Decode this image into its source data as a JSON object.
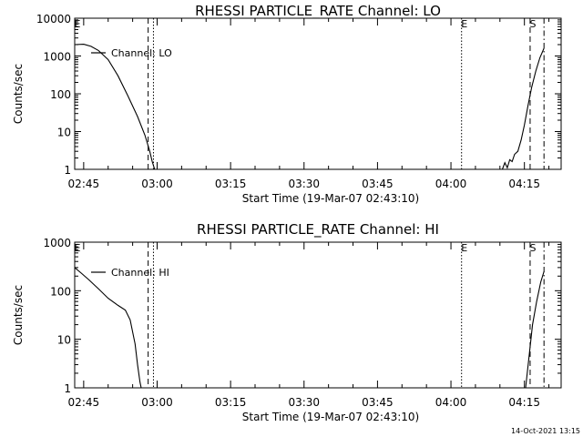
{
  "footer": {
    "timestamp": "14-Oct-2021 13:15"
  },
  "chart_data": [
    {
      "type": "line",
      "title": "RHESSI PARTICLE_RATE Channel: LO",
      "xlabel": "Start Time (19-Mar-07 02:43:10)",
      "ylabel": "Counts/sec",
      "yscale": "log",
      "xlim": [
        "02:43:10",
        "04:22:30"
      ],
      "ylim": [
        1,
        10000
      ],
      "x_tick_labels": [
        "02:45",
        "03:00",
        "03:15",
        "03:30",
        "03:45",
        "04:00",
        "04:15"
      ],
      "y_tick_labels": [
        "1",
        "10",
        "100",
        "1000",
        "10000"
      ],
      "y_tick_values": [
        1,
        10,
        100,
        1000,
        10000
      ],
      "legend": {
        "label": "Channel: LO",
        "position": "top-left"
      },
      "markers": [
        {
          "time": "02:43:10",
          "style": "dash-dot",
          "label": "E"
        },
        {
          "time": "02:58:10",
          "style": "dashed",
          "label": ""
        },
        {
          "time": "02:59:15",
          "style": "dotted",
          "label": ""
        },
        {
          "time": "04:02:10",
          "style": "dotted",
          "label": "E"
        },
        {
          "time": "04:16:10",
          "style": "dashed",
          "label": "S"
        },
        {
          "time": "04:19:00",
          "style": "dash-dot",
          "label": ""
        }
      ],
      "series": [
        {
          "name": "Channel: LO",
          "segments": [
            [
              [
                "02:43:10",
                2000
              ],
              [
                "02:45:00",
                2050
              ],
              [
                "02:46:30",
                1800
              ],
              [
                "02:48:00",
                1400
              ],
              [
                "02:50:00",
                800
              ],
              [
                "02:52:00",
                300
              ],
              [
                "02:54:00",
                90
              ],
              [
                "02:56:00",
                25
              ],
              [
                "02:57:30",
                8
              ],
              [
                "02:58:30",
                3
              ],
              [
                "02:59:00",
                1.6
              ],
              [
                "02:59:30",
                1
              ]
            ],
            [
              [
                "04:10:30",
                1
              ],
              [
                "04:11:00",
                1.5
              ],
              [
                "04:11:30",
                1.1
              ],
              [
                "04:12:00",
                1.8
              ],
              [
                "04:12:30",
                1.6
              ],
              [
                "04:13:00",
                2.5
              ],
              [
                "04:13:40",
                3
              ],
              [
                "04:14:20",
                6
              ],
              [
                "04:15:00",
                15
              ],
              [
                "04:15:45",
                50
              ],
              [
                "04:16:30",
                150
              ],
              [
                "04:17:20",
                400
              ],
              [
                "04:18:10",
                900
              ],
              [
                "04:19:00",
                1600
              ]
            ]
          ]
        }
      ]
    },
    {
      "type": "line",
      "title": "RHESSI PARTICLE_RATE Channel: HI",
      "xlabel": "Start Time (19-Mar-07 02:43:10)",
      "ylabel": "Counts/sec",
      "yscale": "log",
      "xlim": [
        "02:43:10",
        "04:22:30"
      ],
      "ylim": [
        1,
        1000
      ],
      "x_tick_labels": [
        "02:45",
        "03:00",
        "03:15",
        "03:30",
        "03:45",
        "04:00",
        "04:15"
      ],
      "y_tick_labels": [
        "1",
        "10",
        "100",
        "1000"
      ],
      "y_tick_values": [
        1,
        10,
        100,
        1000
      ],
      "legend": {
        "label": "Channel: HI",
        "position": "top-left"
      },
      "markers": [
        {
          "time": "02:43:10",
          "style": "dash-dot",
          "label": "E"
        },
        {
          "time": "02:58:10",
          "style": "dashed",
          "label": ""
        },
        {
          "time": "02:59:15",
          "style": "dotted",
          "label": ""
        },
        {
          "time": "04:02:10",
          "style": "dotted",
          "label": "E"
        },
        {
          "time": "04:16:10",
          "style": "dashed",
          "label": "S"
        },
        {
          "time": "04:19:00",
          "style": "dash-dot",
          "label": ""
        }
      ],
      "series": [
        {
          "name": "Channel: HI",
          "segments": [
            [
              [
                "02:43:10",
                300
              ],
              [
                "02:44:30",
                230
              ],
              [
                "02:46:00",
                170
              ],
              [
                "02:48:00",
                110
              ],
              [
                "02:50:00",
                70
              ],
              [
                "02:52:00",
                50
              ],
              [
                "02:53:30",
                40
              ],
              [
                "02:54:30",
                25
              ],
              [
                "02:55:30",
                8
              ],
              [
                "02:56:00",
                3
              ],
              [
                "02:56:30",
                1.3
              ],
              [
                "02:56:45",
                1
              ]
            ],
            [
              [
                "04:15:15",
                1
              ],
              [
                "04:16:00",
                5
              ],
              [
                "04:16:40",
                20
              ],
              [
                "04:17:30",
                60
              ],
              [
                "04:18:20",
                150
              ],
              [
                "04:19:00",
                250
              ]
            ]
          ]
        }
      ]
    }
  ]
}
